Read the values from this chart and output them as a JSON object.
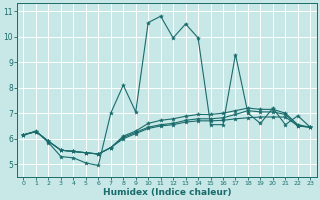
{
  "xlabel": "Humidex (Indice chaleur)",
  "bg_color": "#c8e8e8",
  "line_color": "#1a6b6b",
  "grid_color": "#ffffff",
  "xlim": [
    -0.5,
    23.5
  ],
  "ylim": [
    4.5,
    11.3
  ],
  "yticks": [
    5,
    6,
    7,
    8,
    9,
    10,
    11
  ],
  "xticks": [
    0,
    1,
    2,
    3,
    4,
    5,
    6,
    7,
    8,
    9,
    10,
    11,
    12,
    13,
    14,
    15,
    16,
    17,
    18,
    19,
    20,
    21,
    22,
    23
  ],
  "lines": [
    {
      "x": [
        0,
        1,
        2,
        3,
        4,
        5,
        6,
        7,
        8,
        9,
        10,
        11,
        12,
        13,
        14,
        15,
        16,
        17,
        18,
        19,
        20,
        21,
        22,
        23
      ],
      "y": [
        6.15,
        6.3,
        5.85,
        5.3,
        5.25,
        5.05,
        4.95,
        7.0,
        8.1,
        7.05,
        10.55,
        10.8,
        9.95,
        10.5,
        9.95,
        6.55,
        6.55,
        9.3,
        7.0,
        6.6,
        7.2,
        6.55,
        6.9,
        6.45
      ]
    },
    {
      "x": [
        0,
        1,
        2,
        3,
        4,
        5,
        6,
        7,
        8,
        9,
        10,
        11,
        12,
        13,
        14,
        15,
        16,
        17,
        18,
        19,
        20,
        21,
        22,
        23
      ],
      "y": [
        6.15,
        6.28,
        5.9,
        5.55,
        5.5,
        5.45,
        5.4,
        5.65,
        6.0,
        6.2,
        6.4,
        6.5,
        6.55,
        6.65,
        6.7,
        6.7,
        6.72,
        6.78,
        6.82,
        6.85,
        6.85,
        6.85,
        6.5,
        6.45
      ]
    },
    {
      "x": [
        0,
        1,
        2,
        3,
        4,
        5,
        6,
        7,
        8,
        9,
        10,
        11,
        12,
        13,
        14,
        15,
        16,
        17,
        18,
        19,
        20,
        21,
        22,
        23
      ],
      "y": [
        6.15,
        6.28,
        5.9,
        5.55,
        5.5,
        5.45,
        5.4,
        5.65,
        6.05,
        6.25,
        6.45,
        6.55,
        6.6,
        6.72,
        6.78,
        6.78,
        6.82,
        6.95,
        7.1,
        7.05,
        7.05,
        6.95,
        6.5,
        6.45
      ]
    },
    {
      "x": [
        0,
        1,
        2,
        3,
        4,
        5,
        6,
        7,
        8,
        9,
        10,
        11,
        12,
        13,
        14,
        15,
        16,
        17,
        18,
        19,
        20,
        21,
        22,
        23
      ],
      "y": [
        6.15,
        6.28,
        5.9,
        5.55,
        5.5,
        5.45,
        5.4,
        5.65,
        6.1,
        6.3,
        6.6,
        6.72,
        6.78,
        6.88,
        6.95,
        6.95,
        7.0,
        7.1,
        7.2,
        7.15,
        7.15,
        7.0,
        6.55,
        6.45
      ]
    }
  ]
}
